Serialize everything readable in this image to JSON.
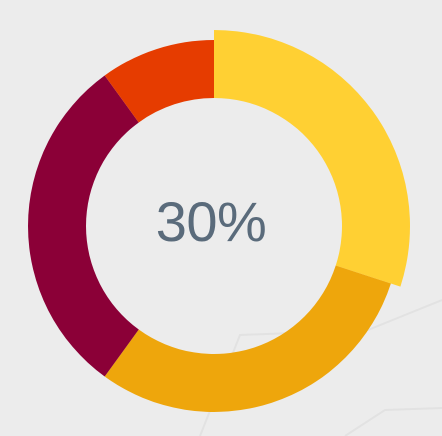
{
  "chart_data": {
    "type": "pie",
    "center_label": "30%",
    "slices": [
      {
        "value": 30,
        "color": "#ffd033",
        "highlighted": true
      },
      {
        "value": 30,
        "color": "#eea60c",
        "highlighted": false
      },
      {
        "value": 30,
        "color": "#8b0037",
        "highlighted": false
      },
      {
        "value": 10,
        "color": "#e63c00",
        "highlighted": false
      }
    ]
  },
  "colors": {
    "background": "#ececec",
    "center_text": "#5a6b7b"
  }
}
